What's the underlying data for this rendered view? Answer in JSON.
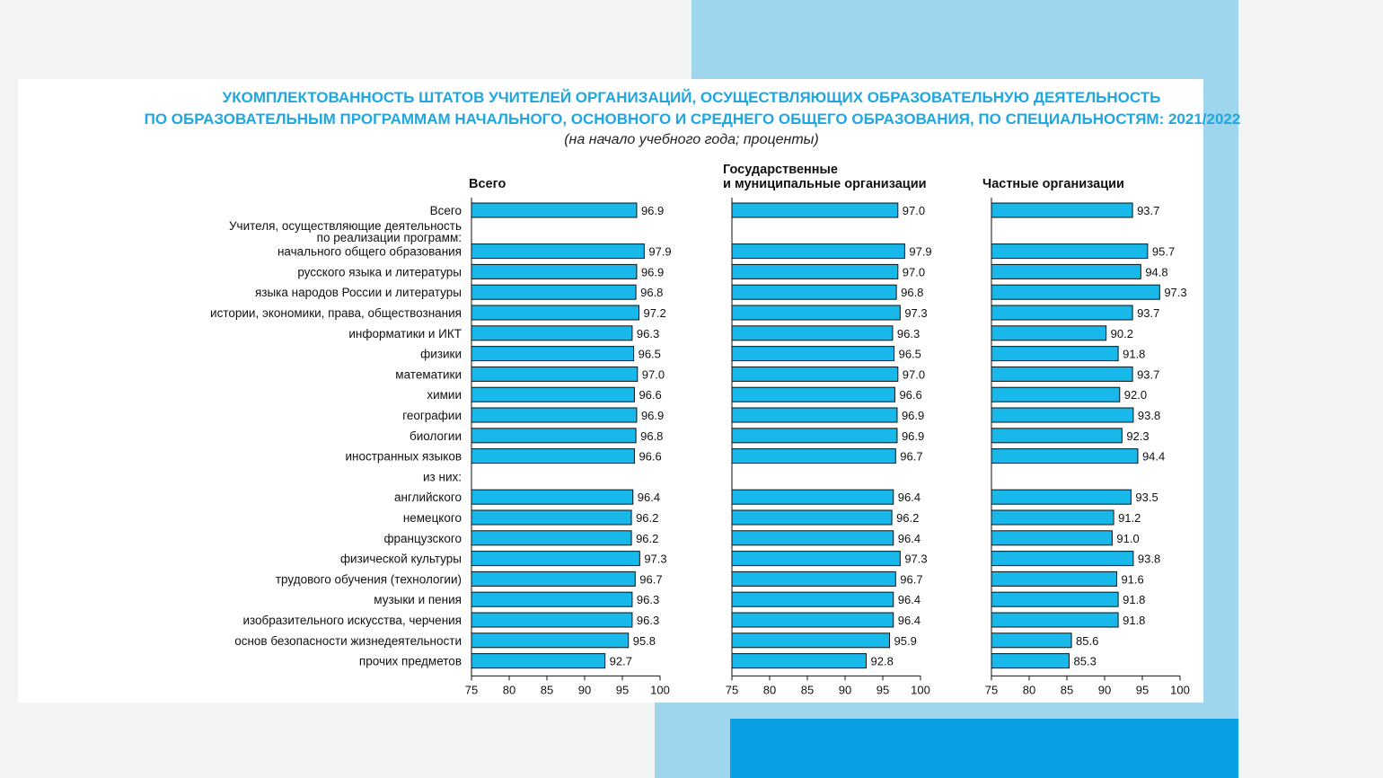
{
  "title_line1": "УКОМПЛЕКТОВАННОСТЬ ШТАТОВ УЧИТЕЛЕЙ ОРГАНИЗАЦИЙ, ОСУЩЕСТВЛЯЮЩИХ ОБРАЗОВАТЕЛЬНУЮ ДЕЯТЕЛЬНОСТЬ",
  "title_line2": "ПО ОБРАЗОВАТЕЛЬНЫМ ПРОГРАММАМ НАЧАЛЬНОГО, ОСНОВНОГО И СРЕДНЕГО ОБЩЕГО ОБРАЗОВАНИЯ, ПО СПЕЦИАЛЬНОСТЯМ: 2021/2022",
  "subtitle": "(на начало учебного года; проценты)",
  "colors": {
    "bar": "#19b8ea",
    "title": "#1ea7e0",
    "deco_light": "#9fd6ee",
    "deco_dark": "#0aa0e4"
  },
  "chart_data": {
    "type": "bar",
    "orientation": "horizontal",
    "xlim": [
      75,
      100
    ],
    "ticks": [
      "75",
      "80",
      "85",
      "90",
      "95",
      "100"
    ],
    "rows": [
      [
        "Всего"
      ],
      [
        "Учителя, осуществляющие деятельность",
        "по реализации программ:"
      ],
      [
        "начального общего образования"
      ],
      [
        "русского языка и литературы"
      ],
      [
        "языка народов России и литературы"
      ],
      [
        "истории, экономики, права, обществознания"
      ],
      [
        "информатики и ИКТ"
      ],
      [
        "физики"
      ],
      [
        "математики"
      ],
      [
        "химии"
      ],
      [
        "географии"
      ],
      [
        "биологии"
      ],
      [
        "иностранных языков"
      ],
      [
        "из них:"
      ],
      [
        "английского"
      ],
      [
        "немецкого"
      ],
      [
        "французского"
      ],
      [
        "физической культуры"
      ],
      [
        "трудового обучения (технологии)"
      ],
      [
        "музыки и пения"
      ],
      [
        "изобразительного искусства, черчения"
      ],
      [
        "основ безопасности жизнедеятельности"
      ],
      [
        "прочих предметов"
      ]
    ],
    "series": [
      {
        "name": "Всего",
        "title_lines": [
          "Всего"
        ],
        "values": [
          96.9,
          null,
          97.9,
          96.9,
          96.8,
          97.2,
          96.3,
          96.5,
          97.0,
          96.6,
          96.9,
          96.8,
          96.6,
          null,
          96.4,
          96.2,
          96.2,
          97.3,
          96.7,
          96.3,
          96.3,
          95.8,
          92.7
        ]
      },
      {
        "name": "Государственные и муниципальные организации",
        "title_lines": [
          "Государственные",
          "и муниципальные организации"
        ],
        "values": [
          97.0,
          null,
          97.9,
          97.0,
          96.8,
          97.3,
          96.3,
          96.5,
          97.0,
          96.6,
          96.9,
          96.9,
          96.7,
          null,
          96.4,
          96.2,
          96.4,
          97.3,
          96.7,
          96.4,
          96.4,
          95.9,
          92.8
        ]
      },
      {
        "name": "Частные организации",
        "title_lines": [
          "Частные организации"
        ],
        "values": [
          93.7,
          null,
          95.7,
          94.8,
          97.3,
          93.7,
          90.2,
          91.8,
          93.7,
          92.0,
          93.8,
          92.3,
          94.4,
          null,
          93.5,
          91.2,
          91.0,
          93.8,
          91.6,
          91.8,
          91.8,
          85.6,
          85.3
        ]
      }
    ]
  }
}
